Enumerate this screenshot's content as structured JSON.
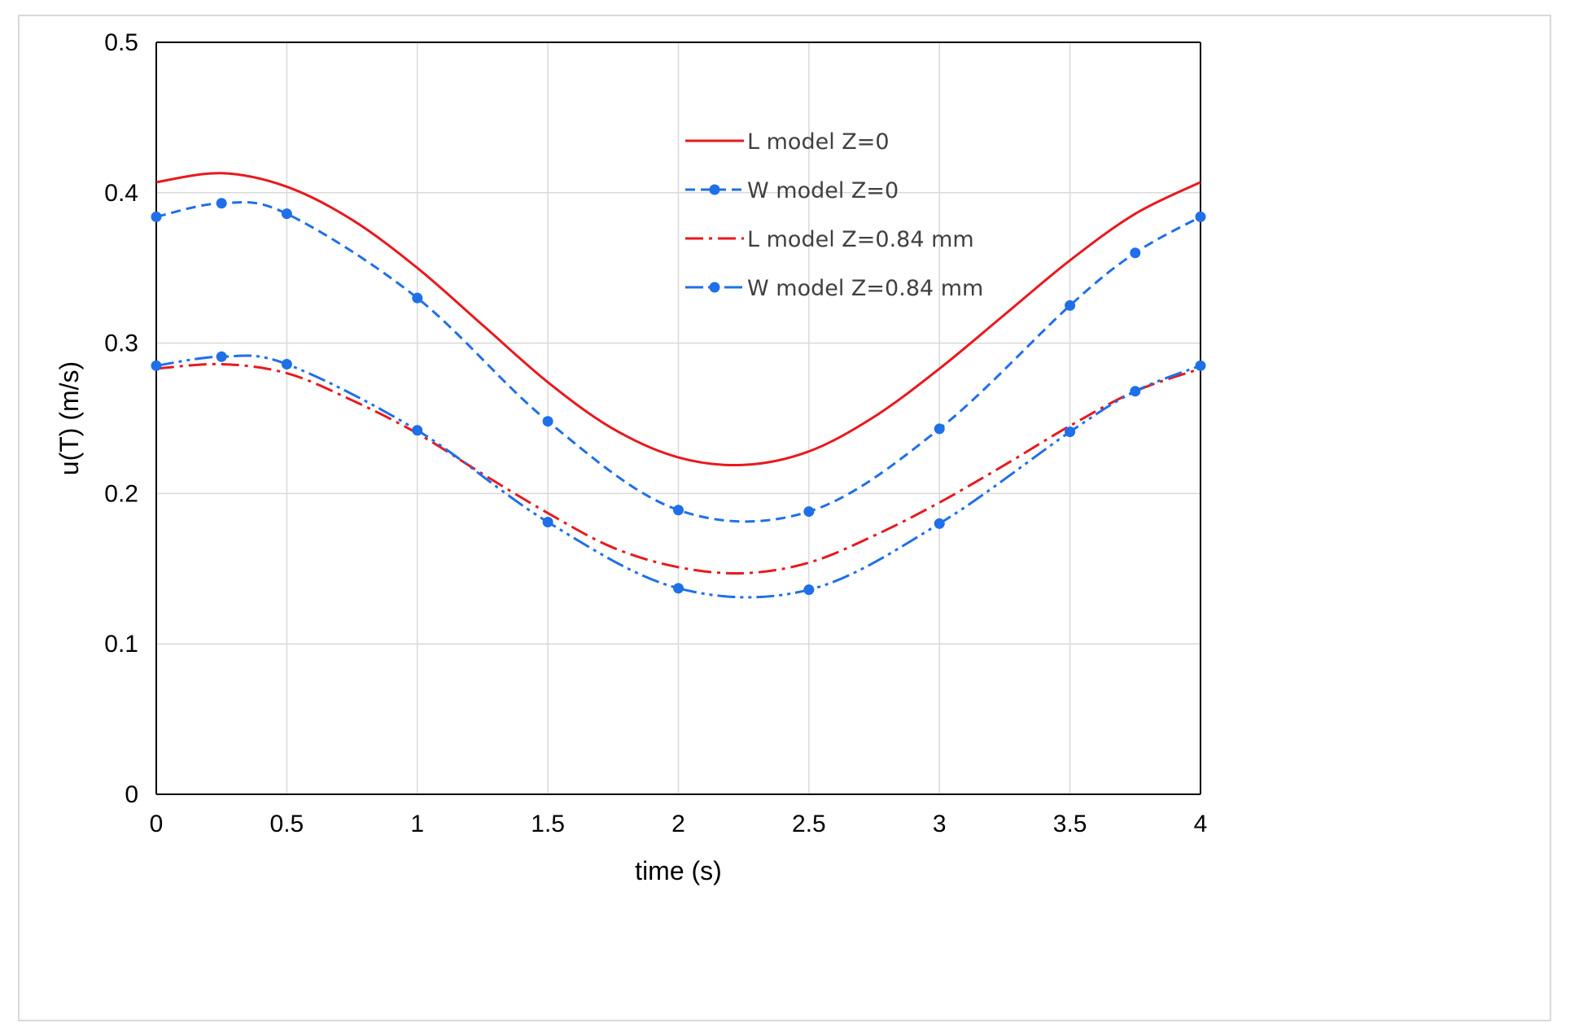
{
  "chart_data": {
    "type": "line",
    "title": "",
    "xlabel": "time (s)",
    "ylabel": "u(T) (m/s)",
    "xlim": [
      0,
      4
    ],
    "ylim": [
      0,
      0.5
    ],
    "xticks": [
      0,
      0.5,
      1,
      1.5,
      2,
      2.5,
      3,
      3.5,
      4
    ],
    "yticks": [
      0,
      0.1,
      0.2,
      0.3,
      0.4,
      0.5
    ],
    "xtick_labels": [
      "0",
      "0.5",
      "1",
      "1.5",
      "2",
      "2.5",
      "3",
      "3.5",
      "4"
    ],
    "ytick_labels": [
      "0",
      "0.1",
      "0.2",
      "0.3",
      "0.4",
      "0.5"
    ],
    "grid": true,
    "legend_position": "top-center",
    "series": [
      {
        "name": "L model Z=0",
        "color": "#e8191e",
        "style": "solid",
        "markers": false,
        "x": [
          0,
          0.25,
          0.5,
          0.75,
          1,
          1.25,
          1.5,
          1.75,
          2,
          2.25,
          2.5,
          2.75,
          3,
          3.25,
          3.5,
          3.75,
          4
        ],
        "y": [
          0.407,
          0.413,
          0.404,
          0.382,
          0.35,
          0.312,
          0.274,
          0.243,
          0.224,
          0.219,
          0.228,
          0.251,
          0.283,
          0.319,
          0.355,
          0.386,
          0.407
        ]
      },
      {
        "name": "W model Z=0",
        "color": "#1f6fe8",
        "style": "dashed",
        "markers": true,
        "x": [
          0,
          0.25,
          0.5,
          1,
          1.5,
          2,
          2.5,
          3,
          3.5,
          3.75,
          4
        ],
        "y": [
          0.384,
          0.393,
          0.386,
          0.33,
          0.248,
          0.189,
          0.188,
          0.243,
          0.325,
          0.36,
          0.384
        ]
      },
      {
        "name": "L model Z=0.84 mm",
        "color": "#e8191e",
        "style": "dash-dot",
        "markers": false,
        "x": [
          0,
          0.25,
          0.5,
          0.75,
          1,
          1.25,
          1.5,
          1.75,
          2,
          2.25,
          2.5,
          2.75,
          3,
          3.25,
          3.5,
          3.75,
          4
        ],
        "y": [
          0.283,
          0.286,
          0.28,
          0.262,
          0.24,
          0.213,
          0.187,
          0.164,
          0.151,
          0.147,
          0.154,
          0.172,
          0.194,
          0.219,
          0.245,
          0.268,
          0.283
        ]
      },
      {
        "name": "W model Z=0.84 mm",
        "color": "#1f6fe8",
        "style": "dash-dot-dot",
        "markers": true,
        "x": [
          0,
          0.25,
          0.5,
          1,
          1.5,
          2,
          2.5,
          3,
          3.5,
          3.75,
          4
        ],
        "y": [
          0.285,
          0.291,
          0.286,
          0.242,
          0.181,
          0.137,
          0.136,
          0.18,
          0.241,
          0.268,
          0.285
        ]
      }
    ]
  }
}
